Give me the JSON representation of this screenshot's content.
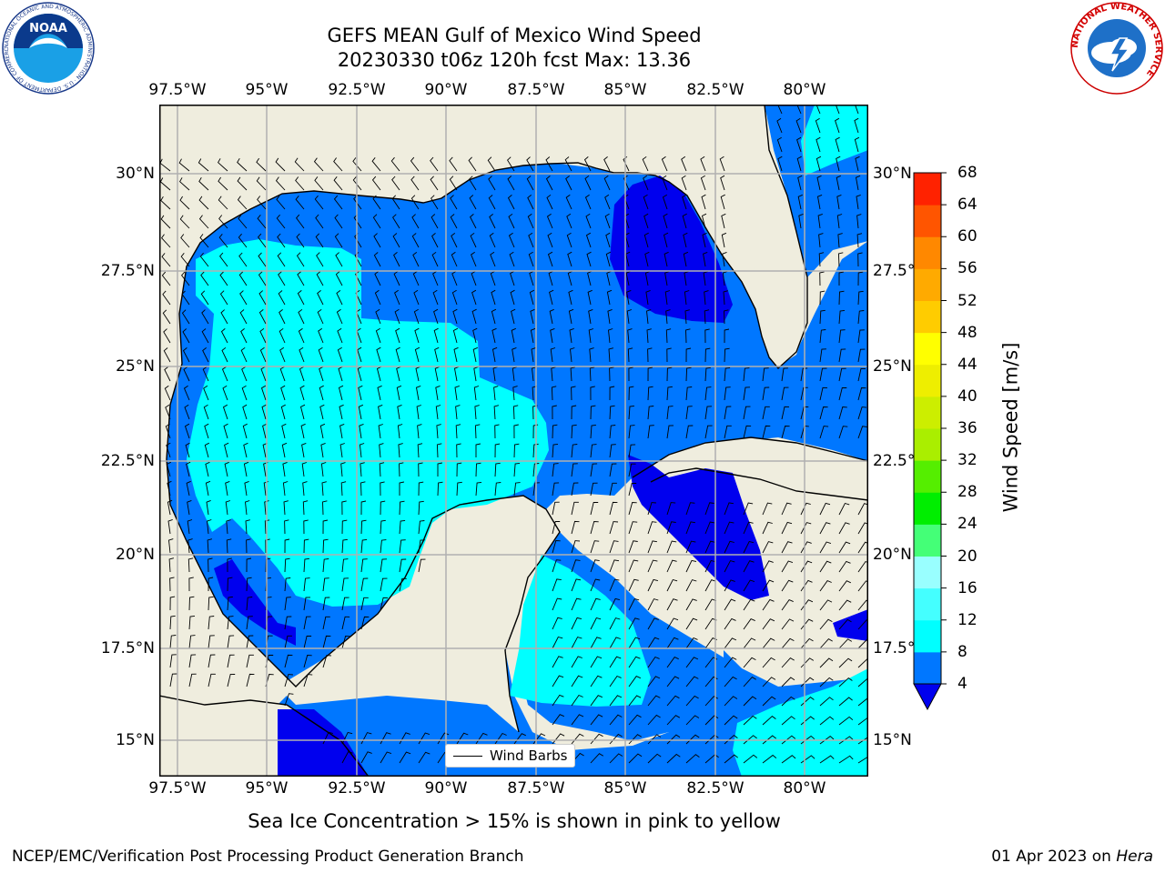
{
  "title": {
    "line1": "GEFS MEAN Gulf of Mexico Wind Speed",
    "line2": "20230330 t06z 120h fcst   Max: 13.36"
  },
  "map": {
    "lon_ticks": [
      "97.5°W",
      "95°W",
      "92.5°W",
      "90°W",
      "87.5°W",
      "85°W",
      "82.5°W",
      "80°W"
    ],
    "lat_ticks": [
      "30°N",
      "27.5°N",
      "25°N",
      "22.5°N",
      "20°N",
      "17.5°N",
      "15°N"
    ],
    "legend_label": "Wind Barbs",
    "colors": {
      "land": "#efedde",
      "wind_4_8": "#0077ff",
      "wind_lt4": "#0000ee",
      "wind_8_12": "#00ffff",
      "grid": "#b0b0b0"
    }
  },
  "colorbar": {
    "title": "Wind Speed [m/s]",
    "levels": [
      "4",
      "8",
      "12",
      "16",
      "20",
      "24",
      "28",
      "32",
      "36",
      "40",
      "44",
      "48",
      "52",
      "56",
      "60",
      "64",
      "68"
    ],
    "colors": [
      "#0077ff",
      "#00ffff",
      "#44ffff",
      "#99ffff",
      "#44ff77",
      "#00ee00",
      "#55ee00",
      "#aaee00",
      "#ccee00",
      "#eeee00",
      "#ffff00",
      "#ffcc00",
      "#ffaa00",
      "#ff8800",
      "#ff5500",
      "#ff2200"
    ],
    "under_color": "#0000ee"
  },
  "caption": "Sea Ice Concentration > 15% is shown in pink to yellow",
  "footer": {
    "left": "NCEP/EMC/Verification Post Processing Product Generation Branch",
    "date": "01 Apr 2023 on",
    "machine": "Hera"
  },
  "logos": {
    "noaa_text": "NOAA",
    "noaa_ring": "NATIONAL OCEANIC AND ATMOSPHERIC ADMINISTRATION · U.S. DEPARTMENT OF COMMERCE",
    "nws_ring": "NATIONAL WEATHER SERVICE"
  }
}
